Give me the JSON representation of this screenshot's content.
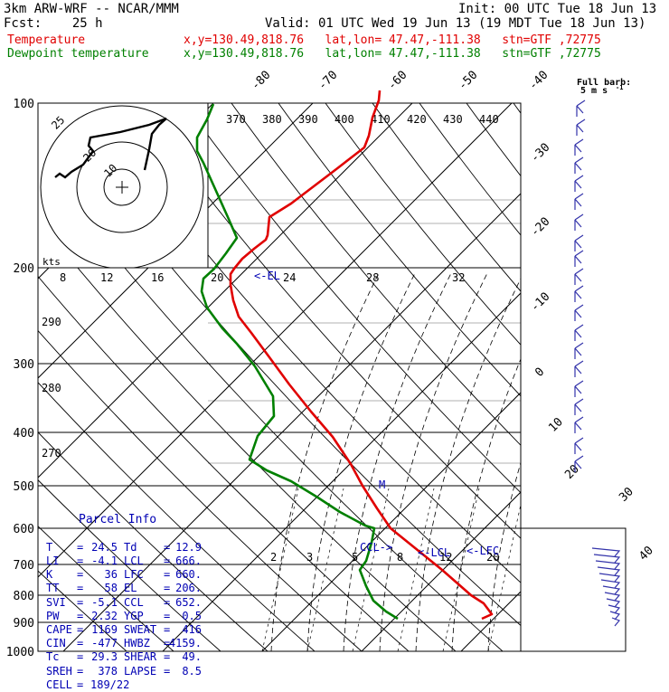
{
  "header": {
    "line1_left": "3km ARW-WRF -- NCAR/MMM",
    "line1_right": "Init: 00 UTC Tue 18 Jun 13",
    "line2_left": "Fcst:    25 h",
    "line2_right": "Valid: 01 UTC Wed 19 Jun 13 (19 MDT Tue 18 Jun 13)",
    "temp_label": "Temperature",
    "temp_info": "x,y=130.49,818.76   lat,lon= 47.47,-111.38   stn=GTF ,72775",
    "dew_label": "Dewpoint temperature",
    "dew_info": "x,y=130.49,818.76   lat,lon= 47.47,-111.38   stn=GTF ,72775"
  },
  "colors": {
    "temperature": "#e00000",
    "dewpoint": "#008000",
    "parcel_text": "#0000b4"
  },
  "chart_data": {
    "type": "line",
    "chart_kind": "skew-T log-p diagram",
    "pressure_levels": [
      "100",
      "200",
      "300",
      "400",
      "500",
      "600",
      "700",
      "800",
      "900",
      "1000"
    ],
    "temp_isotherm_labels": [
      "-80",
      "-70",
      "-60",
      "-50",
      "-40",
      "-30",
      "-20",
      "-10",
      "0",
      "10",
      "20",
      "30",
      "40"
    ],
    "theta_labels": [
      "370",
      "380",
      "390",
      "400",
      "410",
      "420",
      "430",
      "440"
    ],
    "theta_left_labels": [
      "290",
      "280",
      "270"
    ],
    "mixing_ratio_labels": [
      "2",
      "3",
      "5",
      "8",
      "12",
      "20"
    ],
    "hodograph": {
      "kts_label": "kts",
      "speed_axis_labels": [
        "8",
        "12",
        "16",
        "20",
        "24",
        "28",
        "32"
      ],
      "ring_labels": [
        "25",
        "20",
        "10"
      ]
    },
    "level_labels": {
      "el": "<-EL",
      "lcl": "<-LCL",
      "lfc": "<-LFC",
      "ccl": "CCL->",
      "mark": "M"
    },
    "barb_title": "Full barb:",
    "barb_unit": "5 m s",
    "series": [
      {
        "name": "Temperature",
        "points": [
          [
            420,
            100
          ],
          [
            419,
            111
          ],
          [
            412,
            130
          ],
          [
            408,
            150
          ],
          [
            403,
            163
          ],
          [
            372,
            187
          ],
          [
            322,
            225
          ],
          [
            298,
            240
          ],
          [
            297,
            250
          ],
          [
            296,
            260
          ],
          [
            294,
            265
          ],
          [
            281,
            275
          ],
          [
            268,
            286
          ],
          [
            259,
            297
          ],
          [
            255,
            303
          ],
          [
            255,
            315
          ],
          [
            258,
            332
          ],
          [
            264,
            350
          ],
          [
            278,
            368
          ],
          [
            298,
            395
          ],
          [
            320,
            425
          ],
          [
            344,
            455
          ],
          [
            368,
            483
          ],
          [
            388,
            513
          ],
          [
            401,
            537
          ],
          [
            417,
            562
          ],
          [
            432,
            584
          ],
          [
            463,
            609
          ],
          [
            489,
            630
          ],
          [
            521,
            658
          ],
          [
            535,
            667
          ],
          [
            544,
            679
          ],
          [
            533,
            684
          ]
        ]
      },
      {
        "name": "Dewpoint temperature",
        "points": [
          [
            236,
            115
          ],
          [
            229,
            132
          ],
          [
            218,
            152
          ],
          [
            218,
            167
          ],
          [
            225,
            180
          ],
          [
            234,
            200
          ],
          [
            243,
            220
          ],
          [
            252,
            240
          ],
          [
            262,
            263
          ],
          [
            250,
            280
          ],
          [
            237,
            297
          ],
          [
            225,
            308
          ],
          [
            223,
            322
          ],
          [
            229,
            340
          ],
          [
            246,
            363
          ],
          [
            262,
            380
          ],
          [
            282,
            405
          ],
          [
            302,
            438
          ],
          [
            303,
            460
          ],
          [
            285,
            482
          ],
          [
            276,
            508
          ],
          [
            295,
            520
          ],
          [
            322,
            532
          ],
          [
            350,
            549
          ],
          [
            376,
            566
          ],
          [
            404,
            581
          ],
          [
            414,
            584
          ],
          [
            411,
            600
          ],
          [
            405,
            620
          ],
          [
            398,
            630
          ],
          [
            405,
            648
          ],
          [
            413,
            664
          ],
          [
            427,
            676
          ],
          [
            440,
            684
          ]
        ]
      }
    ]
  },
  "parcel_info": {
    "title": "Parcel Info",
    "rows": [
      {
        "l1": "T",
        "v1": "24.5",
        "l2": "Td",
        "v2": "12.9"
      },
      {
        "l1": "LI",
        "v1": "-4.1",
        "l2": "LCL",
        "v2": "666."
      },
      {
        "l1": "K",
        "v1": "36",
        "l2": "LFC",
        "v2": "660."
      },
      {
        "l1": "TT",
        "v1": "58",
        "l2": "EL",
        "v2": "206."
      },
      {
        "l1": "SVI",
        "v1": "-5.1",
        "l2": "CCL",
        "v2": "652."
      },
      {
        "l1": "PW",
        "v1": "2.32",
        "l2": "YGP",
        "v2": "0.5"
      },
      {
        "l1": "CAPE",
        "v1": "1169",
        "l2": "SWEAT",
        "v2": "416"
      },
      {
        "l1": "CIN",
        "v1": "-477",
        "l2": "HWBZ",
        "v2": "4159."
      },
      {
        "l1": "Tc",
        "v1": "29.3",
        "l2": "SHEAR",
        "v2": "49."
      },
      {
        "l1": "SREH",
        "v1": "378",
        "l2": "LAPSE",
        "v2": "8.5"
      },
      {
        "l1": "CELL",
        "v1": "189/22",
        "l2": "",
        "v2": ""
      }
    ]
  }
}
